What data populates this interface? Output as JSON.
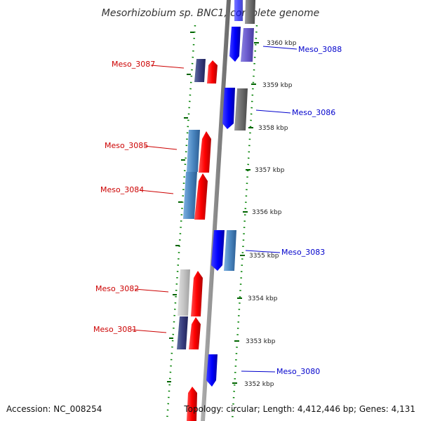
{
  "title": "Mesorhizobium sp. BNC1, complete genome",
  "footer": {
    "accession": "Accession: NC_008254",
    "topology": "Topology: circular; Length: 4,412,446 bp; Genes: 4,131"
  },
  "colors": {
    "forward_strand": "#ff0000",
    "reverse_strand": "#0000ff",
    "left_label": "#cc0000",
    "right_label": "#0000cc",
    "guide_dots": "#008000",
    "backbone": "#888888"
  },
  "scale_labels": [
    "3360 kbp",
    "3359 kbp",
    "3358 kbp",
    "3357 kbp",
    "3356 kbp",
    "3355 kbp",
    "3354 kbp",
    "3353 kbp",
    "3352 kbp"
  ],
  "gene_labels": {
    "left": [
      "Meso_3087",
      "Meso_3085",
      "Meso_3084",
      "Meso_3082",
      "Meso_3081"
    ],
    "right": [
      "Meso_3088",
      "Meso_3086",
      "Meso_3083",
      "Meso_3080"
    ]
  }
}
